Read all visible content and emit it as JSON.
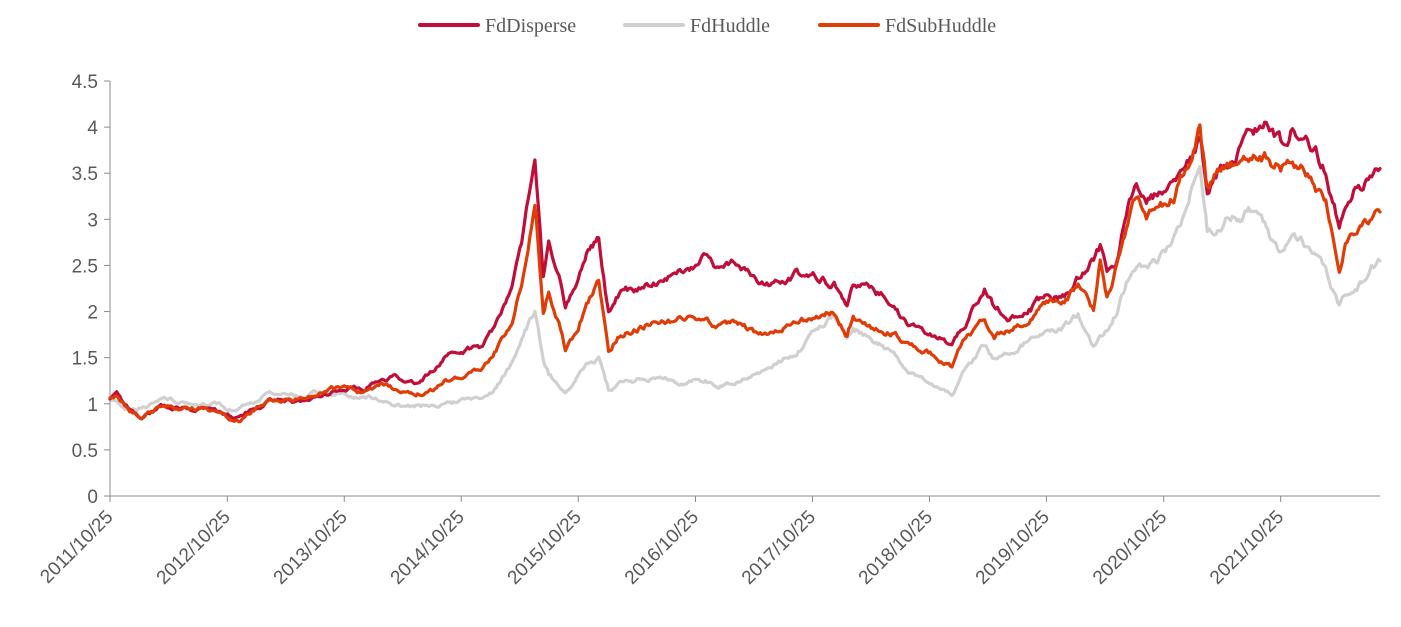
{
  "chart_data": {
    "type": "line",
    "title": "",
    "xlabel": "",
    "ylabel": "",
    "ylim": [
      0,
      4.5
    ],
    "y_ticks": [
      "0",
      "0.5",
      "1",
      "1.5",
      "2",
      "2.5",
      "3",
      "3.5",
      "4",
      "4.5"
    ],
    "x_tick_labels": [
      "2011/10/25",
      "2012/10/25",
      "2013/10/25",
      "2014/10/25",
      "2015/10/25",
      "2016/10/25",
      "2017/10/25",
      "2018/10/25",
      "2019/10/25",
      "2020/10/25",
      "2021/10/25"
    ],
    "x_range": [
      "2011/10/25",
      "2022/08/31"
    ],
    "grid": false,
    "legend_position": "top-center",
    "series": [
      {
        "name": "FdDisperse",
        "color": "#C00D3A",
        "points": [
          [
            "2011/10/25",
            1.05
          ],
          [
            "2011/11/15",
            1.1
          ],
          [
            "2011/12/25",
            0.92
          ],
          [
            "2012/02/01",
            0.85
          ],
          [
            "2012/04/01",
            0.98
          ],
          [
            "2012/06/01",
            0.97
          ],
          [
            "2012/08/01",
            0.95
          ],
          [
            "2012/10/01",
            0.9
          ],
          [
            "2012/12/01",
            0.83
          ],
          [
            "2013/01/20",
            0.95
          ],
          [
            "2013/03/01",
            1.02
          ],
          [
            "2013/05/01",
            1.03
          ],
          [
            "2013/06/25",
            1.0
          ],
          [
            "2013/08/01",
            1.08
          ],
          [
            "2013/10/25",
            1.2
          ],
          [
            "2013/12/25",
            1.18
          ],
          [
            "2014/02/20",
            1.25
          ],
          [
            "2014/04/01",
            1.28
          ],
          [
            "2014/06/01",
            1.25
          ],
          [
            "2014/07/25",
            1.35
          ],
          [
            "2014/09/01",
            1.48
          ],
          [
            "2014/10/25",
            1.55
          ],
          [
            "2014/12/25",
            1.62
          ],
          [
            "2015/02/01",
            1.8
          ],
          [
            "2015/04/01",
            2.3
          ],
          [
            "2015/05/01",
            2.7
          ],
          [
            "2015/06/12",
            3.72
          ],
          [
            "2015/07/08",
            2.4
          ],
          [
            "2015/07/25",
            2.75
          ],
          [
            "2015/08/26",
            2.4
          ],
          [
            "2015/09/15",
            2.08
          ],
          [
            "2015/10/25",
            2.35
          ],
          [
            "2015/11/20",
            2.65
          ],
          [
            "2015/12/28",
            2.8
          ],
          [
            "2016/01/28",
            2.0
          ],
          [
            "2016/03/01",
            2.2
          ],
          [
            "2016/05/01",
            2.25
          ],
          [
            "2016/07/01",
            2.35
          ],
          [
            "2016/09/01",
            2.45
          ],
          [
            "2016/11/25",
            2.6
          ],
          [
            "2017/01/01",
            2.48
          ],
          [
            "2017/03/01",
            2.52
          ],
          [
            "2017/05/15",
            2.28
          ],
          [
            "2017/07/01",
            2.3
          ],
          [
            "2017/09/01",
            2.42
          ],
          [
            "2017/11/01",
            2.38
          ],
          [
            "2018/01/01",
            2.3
          ],
          [
            "2018/02/10",
            2.1
          ],
          [
            "2018/03/01",
            2.28
          ],
          [
            "2018/05/01",
            2.25
          ],
          [
            "2018/07/01",
            2.1
          ],
          [
            "2018/08/15",
            1.85
          ],
          [
            "2018/10/01",
            1.8
          ],
          [
            "2018/11/01",
            1.75
          ],
          [
            "2019/01/03",
            1.62
          ],
          [
            "2019/02/15",
            1.9
          ],
          [
            "2019/04/15",
            2.25
          ],
          [
            "2019/05/15",
            2.05
          ],
          [
            "2019/07/01",
            1.95
          ],
          [
            "2019/09/01",
            2.05
          ],
          [
            "2019/10/25",
            2.15
          ],
          [
            "2019/12/25",
            2.2
          ],
          [
            "2020/02/01",
            2.35
          ],
          [
            "2020/03/20",
            2.55
          ],
          [
            "2020/04/10",
            2.68
          ],
          [
            "2020/05/01",
            2.4
          ],
          [
            "2020/06/01",
            2.55
          ],
          [
            "2020/07/10",
            3.2
          ],
          [
            "2020/08/01",
            3.38
          ],
          [
            "2020/09/01",
            3.2
          ],
          [
            "2020/10/25",
            3.3
          ],
          [
            "2020/12/01",
            3.38
          ],
          [
            "2021/01/01",
            3.45
          ],
          [
            "2021/02/15",
            3.85
          ],
          [
            "2021/03/10",
            3.35
          ],
          [
            "2021/04/01",
            3.45
          ],
          [
            "2021/05/01",
            3.6
          ],
          [
            "2021/06/01",
            3.7
          ],
          [
            "2021/08/01",
            3.95
          ],
          [
            "2021/09/15",
            4.02
          ],
          [
            "2021/10/25",
            3.8
          ],
          [
            "2021/12/01",
            4.02
          ],
          [
            "2022/01/01",
            3.98
          ],
          [
            "2022/02/01",
            3.8
          ],
          [
            "2022/03/15",
            3.55
          ],
          [
            "2022/04/26",
            2.95
          ],
          [
            "2022/05/15",
            3.15
          ],
          [
            "2022/06/15",
            3.35
          ],
          [
            "2022/07/15",
            3.4
          ],
          [
            "2022/08/31",
            3.55
          ]
        ]
      },
      {
        "name": "FdHuddle",
        "color": "#D0D0D0",
        "points": [
          [
            "2011/10/25",
            1.05
          ],
          [
            "2011/11/15",
            1.08
          ],
          [
            "2011/12/25",
            0.95
          ],
          [
            "2012/02/01",
            0.97
          ],
          [
            "2012/04/01",
            1.05
          ],
          [
            "2012/06/01",
            1.02
          ],
          [
            "2012/08/01",
            1.0
          ],
          [
            "2012/10/01",
            0.98
          ],
          [
            "2012/12/01",
            0.95
          ],
          [
            "2013/01/20",
            1.05
          ],
          [
            "2013/03/01",
            1.1
          ],
          [
            "2013/05/01",
            1.12
          ],
          [
            "2013/06/25",
            1.08
          ],
          [
            "2013/08/01",
            1.12
          ],
          [
            "2013/10/25",
            1.12
          ],
          [
            "2013/12/25",
            1.08
          ],
          [
            "2014/02/20",
            1.05
          ],
          [
            "2014/04/01",
            1.0
          ],
          [
            "2014/06/01",
            0.97
          ],
          [
            "2014/07/25",
            0.98
          ],
          [
            "2014/09/01",
            1.0
          ],
          [
            "2014/10/25",
            1.02
          ],
          [
            "2014/12/25",
            1.05
          ],
          [
            "2015/02/01",
            1.15
          ],
          [
            "2015/04/01",
            1.45
          ],
          [
            "2015/05/01",
            1.7
          ],
          [
            "2015/06/12",
            2.0
          ],
          [
            "2015/07/08",
            1.45
          ],
          [
            "2015/07/25",
            1.3
          ],
          [
            "2015/08/26",
            1.2
          ],
          [
            "2015/09/15",
            1.15
          ],
          [
            "2015/10/25",
            1.3
          ],
          [
            "2015/11/20",
            1.45
          ],
          [
            "2015/12/28",
            1.5
          ],
          [
            "2016/01/28",
            1.15
          ],
          [
            "2016/03/01",
            1.2
          ],
          [
            "2016/05/01",
            1.25
          ],
          [
            "2016/07/01",
            1.28
          ],
          [
            "2016/09/01",
            1.25
          ],
          [
            "2016/11/25",
            1.25
          ],
          [
            "2017/01/01",
            1.2
          ],
          [
            "2017/03/01",
            1.25
          ],
          [
            "2017/05/15",
            1.35
          ],
          [
            "2017/07/01",
            1.45
          ],
          [
            "2017/09/01",
            1.55
          ],
          [
            "2017/11/01",
            1.8
          ],
          [
            "2018/01/01",
            1.95
          ],
          [
            "2018/02/10",
            1.75
          ],
          [
            "2018/03/01",
            1.85
          ],
          [
            "2018/05/01",
            1.7
          ],
          [
            "2018/07/01",
            1.55
          ],
          [
            "2018/08/15",
            1.4
          ],
          [
            "2018/10/01",
            1.3
          ],
          [
            "2018/11/01",
            1.25
          ],
          [
            "2019/01/03",
            1.1
          ],
          [
            "2019/02/15",
            1.4
          ],
          [
            "2019/04/15",
            1.65
          ],
          [
            "2019/05/15",
            1.5
          ],
          [
            "2019/07/01",
            1.55
          ],
          [
            "2019/09/01",
            1.7
          ],
          [
            "2019/10/25",
            1.75
          ],
          [
            "2019/12/25",
            1.85
          ],
          [
            "2020/02/01",
            1.95
          ],
          [
            "2020/03/20",
            1.6
          ],
          [
            "2020/04/10",
            1.75
          ],
          [
            "2020/05/01",
            1.8
          ],
          [
            "2020/06/01",
            2.0
          ],
          [
            "2020/07/10",
            2.4
          ],
          [
            "2020/08/01",
            2.5
          ],
          [
            "2020/09/01",
            2.45
          ],
          [
            "2020/10/25",
            2.6
          ],
          [
            "2020/12/01",
            2.8
          ],
          [
            "2021/01/01",
            3.1
          ],
          [
            "2021/02/15",
            3.6
          ],
          [
            "2021/03/10",
            2.9
          ],
          [
            "2021/04/01",
            2.85
          ],
          [
            "2021/05/01",
            3.0
          ],
          [
            "2021/06/01",
            3.05
          ],
          [
            "2021/08/01",
            3.1
          ],
          [
            "2021/09/15",
            2.8
          ],
          [
            "2021/10/25",
            2.6
          ],
          [
            "2021/12/01",
            2.85
          ],
          [
            "2022/01/01",
            2.8
          ],
          [
            "2022/02/01",
            2.6
          ],
          [
            "2022/03/15",
            2.4
          ],
          [
            "2022/04/26",
            2.02
          ],
          [
            "2022/05/15",
            2.15
          ],
          [
            "2022/06/15",
            2.25
          ],
          [
            "2022/07/15",
            2.35
          ],
          [
            "2022/08/31",
            2.55
          ]
        ]
      },
      {
        "name": "FdSubHuddle",
        "color": "#E03C08",
        "points": [
          [
            "2011/10/25",
            1.05
          ],
          [
            "2011/11/15",
            1.08
          ],
          [
            "2011/12/25",
            0.9
          ],
          [
            "2012/02/01",
            0.85
          ],
          [
            "2012/04/01",
            0.97
          ],
          [
            "2012/06/01",
            0.96
          ],
          [
            "2012/08/01",
            0.95
          ],
          [
            "2012/10/01",
            0.9
          ],
          [
            "2012/12/01",
            0.82
          ],
          [
            "2013/01/20",
            0.95
          ],
          [
            "2013/03/01",
            1.03
          ],
          [
            "2013/05/01",
            1.05
          ],
          [
            "2013/06/25",
            1.05
          ],
          [
            "2013/08/01",
            1.1
          ],
          [
            "2013/10/25",
            1.2
          ],
          [
            "2013/12/25",
            1.12
          ],
          [
            "2014/02/20",
            1.22
          ],
          [
            "2014/04/01",
            1.15
          ],
          [
            "2014/06/01",
            1.08
          ],
          [
            "2014/07/25",
            1.15
          ],
          [
            "2014/09/01",
            1.25
          ],
          [
            "2014/10/25",
            1.3
          ],
          [
            "2014/12/25",
            1.35
          ],
          [
            "2015/02/01",
            1.5
          ],
          [
            "2015/04/01",
            1.9
          ],
          [
            "2015/05/01",
            2.3
          ],
          [
            "2015/06/12",
            3.15
          ],
          [
            "2015/07/08",
            2.0
          ],
          [
            "2015/07/25",
            2.25
          ],
          [
            "2015/08/26",
            1.9
          ],
          [
            "2015/09/15",
            1.6
          ],
          [
            "2015/10/25",
            1.85
          ],
          [
            "2015/11/20",
            2.1
          ],
          [
            "2015/12/28",
            2.3
          ],
          [
            "2016/01/28",
            1.6
          ],
          [
            "2016/03/01",
            1.75
          ],
          [
            "2016/05/01",
            1.85
          ],
          [
            "2016/07/01",
            1.9
          ],
          [
            "2016/09/01",
            1.92
          ],
          [
            "2016/11/25",
            1.95
          ],
          [
            "2017/01/01",
            1.85
          ],
          [
            "2017/03/01",
            1.9
          ],
          [
            "2017/05/15",
            1.75
          ],
          [
            "2017/07/01",
            1.8
          ],
          [
            "2017/09/01",
            1.9
          ],
          [
            "2017/11/01",
            1.92
          ],
          [
            "2018/01/01",
            2.0
          ],
          [
            "2018/02/10",
            1.75
          ],
          [
            "2018/03/01",
            1.95
          ],
          [
            "2018/05/01",
            1.85
          ],
          [
            "2018/07/01",
            1.78
          ],
          [
            "2018/08/15",
            1.65
          ],
          [
            "2018/10/01",
            1.6
          ],
          [
            "2018/11/01",
            1.55
          ],
          [
            "2019/01/03",
            1.42
          ],
          [
            "2019/02/15",
            1.7
          ],
          [
            "2019/04/15",
            1.95
          ],
          [
            "2019/05/15",
            1.75
          ],
          [
            "2019/07/01",
            1.8
          ],
          [
            "2019/09/01",
            1.95
          ],
          [
            "2019/10/25",
            2.05
          ],
          [
            "2019/12/25",
            2.15
          ],
          [
            "2020/02/01",
            2.3
          ],
          [
            "2020/03/20",
            2.0
          ],
          [
            "2020/04/10",
            2.6
          ],
          [
            "2020/05/01",
            2.2
          ],
          [
            "2020/06/01",
            2.5
          ],
          [
            "2020/07/10",
            3.0
          ],
          [
            "2020/08/01",
            3.25
          ],
          [
            "2020/09/01",
            3.05
          ],
          [
            "2020/10/25",
            3.15
          ],
          [
            "2020/12/01",
            3.3
          ],
          [
            "2021/01/01",
            3.55
          ],
          [
            "2021/02/15",
            3.95
          ],
          [
            "2021/03/10",
            3.3
          ],
          [
            "2021/04/01",
            3.4
          ],
          [
            "2021/05/01",
            3.5
          ],
          [
            "2021/06/01",
            3.55
          ],
          [
            "2021/08/01",
            3.75
          ],
          [
            "2021/09/15",
            3.7
          ],
          [
            "2021/10/25",
            3.55
          ],
          [
            "2021/12/01",
            3.65
          ],
          [
            "2022/01/01",
            3.55
          ],
          [
            "2022/02/01",
            3.45
          ],
          [
            "2022/03/15",
            3.15
          ],
          [
            "2022/04/26",
            2.45
          ],
          [
            "2022/05/15",
            2.75
          ],
          [
            "2022/06/15",
            2.9
          ],
          [
            "2022/07/15",
            2.95
          ],
          [
            "2022/08/31",
            3.08
          ]
        ]
      }
    ]
  }
}
